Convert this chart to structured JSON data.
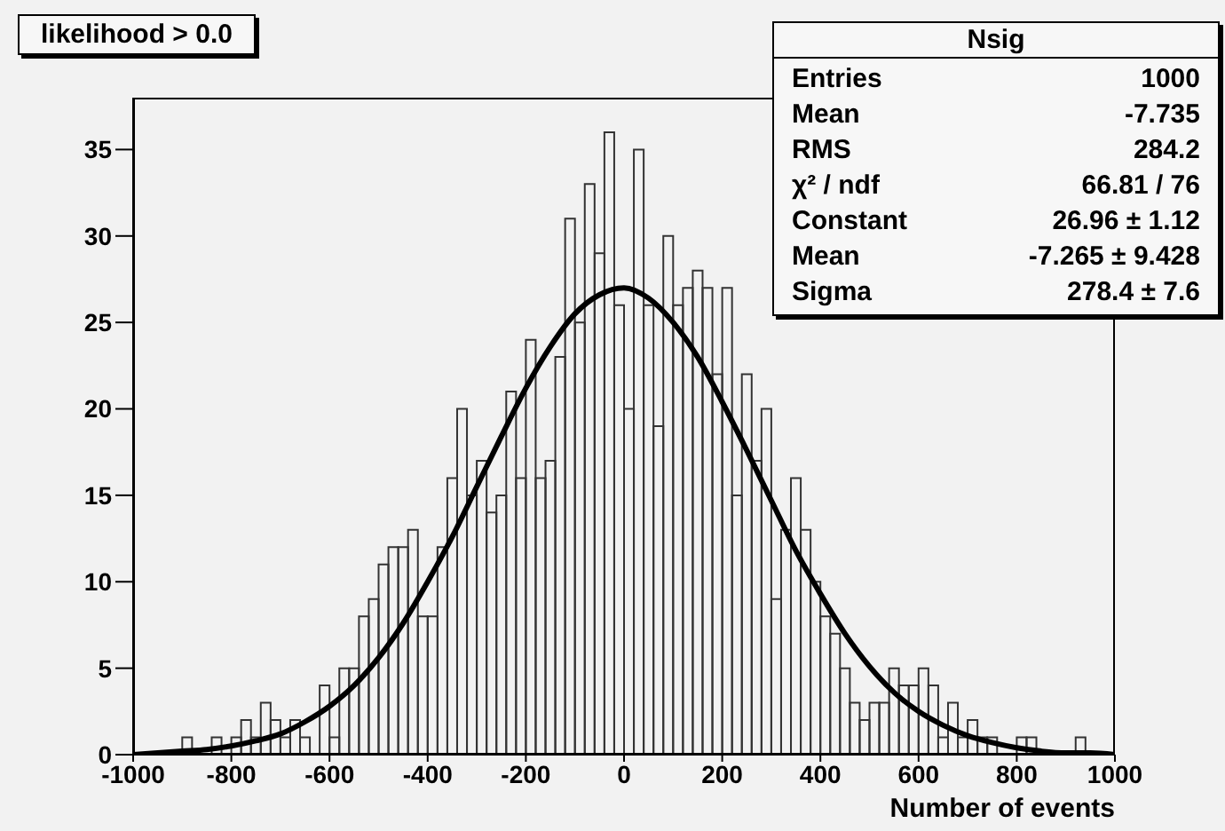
{
  "chart_data": {
    "type": "histogram",
    "title": "likelihood > 0.0",
    "xlabel": "Number of events",
    "bins": [
      -1000,
      -980,
      -960,
      -940,
      -920,
      -900,
      -880,
      -860,
      -840,
      -820,
      -800,
      -780,
      -760,
      -740,
      -720,
      -700,
      -680,
      -660,
      -640,
      -620,
      -600,
      -580,
      -560,
      -540,
      -520,
      -500,
      -480,
      -460,
      -440,
      -420,
      -400,
      -380,
      -360,
      -340,
      -320,
      -300,
      -280,
      -260,
      -240,
      -220,
      -200,
      -180,
      -160,
      -140,
      -120,
      -100,
      -80,
      -60,
      -40,
      -20,
      0,
      20,
      40,
      60,
      80,
      100,
      120,
      140,
      160,
      180,
      200,
      220,
      240,
      260,
      280,
      300,
      320,
      340,
      360,
      380,
      400,
      420,
      440,
      460,
      480,
      500,
      520,
      540,
      560,
      580,
      600,
      620,
      640,
      660,
      680,
      700,
      720,
      740,
      760,
      780,
      800,
      820,
      840,
      860,
      880,
      900,
      920,
      940,
      960,
      980,
      1000
    ],
    "values": [
      0,
      0,
      0,
      0,
      0,
      1,
      0,
      0,
      1,
      0,
      1,
      2,
      1,
      3,
      2,
      1,
      2,
      1,
      0,
      4,
      1,
      5,
      5,
      8,
      9,
      11,
      12,
      12,
      13,
      8,
      8,
      12,
      16,
      20,
      15,
      17,
      14,
      15,
      21,
      16,
      24,
      16,
      17,
      23,
      31,
      25,
      33,
      29,
      36,
      26,
      20,
      35,
      26,
      19,
      30,
      26,
      27,
      28,
      27,
      22,
      27,
      15,
      22,
      17,
      20,
      9,
      13,
      16,
      13,
      10,
      8,
      7,
      5,
      3,
      2,
      3,
      3,
      5,
      4,
      4,
      5,
      4,
      1,
      3,
      1,
      2,
      1,
      1,
      0,
      0,
      1,
      1,
      0,
      0,
      0,
      0,
      1,
      0,
      0,
      0
    ],
    "color": "#333333",
    "series": [
      {
        "type": "line",
        "color": "#000000",
        "x": [
          -1000,
          -950,
          -900,
          -850,
          -800,
          -750,
          -700,
          -650,
          -600,
          -550,
          -500,
          -450,
          -400,
          -350,
          -300,
          -250,
          -200,
          -150,
          -100,
          -50,
          0,
          50,
          100,
          150,
          200,
          250,
          300,
          350,
          400,
          450,
          500,
          550,
          600,
          650,
          700,
          750,
          800,
          850,
          900,
          950,
          1000
        ],
        "values": [
          0,
          0.1,
          0.2,
          0.3,
          0.5,
          0.8,
          1.2,
          1.9,
          2.8,
          4,
          5.6,
          7.6,
          10,
          12.6,
          15.5,
          18.4,
          21.2,
          23.6,
          25.5,
          26.6,
          27,
          26.4,
          25,
          23,
          20.4,
          17.6,
          14.7,
          11.8,
          9.3,
          7,
          5.1,
          3.6,
          2.5,
          1.7,
          1.1,
          0.7,
          0.4,
          0.2,
          0.1,
          0.1,
          0
        ]
      }
    ],
    "xlim": [
      -1000,
      1000
    ],
    "xticks": [
      -1000,
      -800,
      -600,
      -400,
      -200,
      0,
      200,
      400,
      600,
      800,
      1000
    ],
    "ylim": [
      0,
      38
    ],
    "yticks": [
      0,
      5,
      10,
      15,
      20,
      25,
      30,
      35
    ],
    "grid": false,
    "annotations": [
      "Nsig",
      "Entries",
      "1000",
      "Mean",
      "-7.735",
      "RMS",
      "284.2",
      "χ² / ndf",
      "66.81 / 76",
      "Constant",
      "26.96 ± 1.12",
      "Mean",
      "-7.265 ± 9.428",
      "Sigma",
      "278.4 ± 7.6"
    ]
  }
}
